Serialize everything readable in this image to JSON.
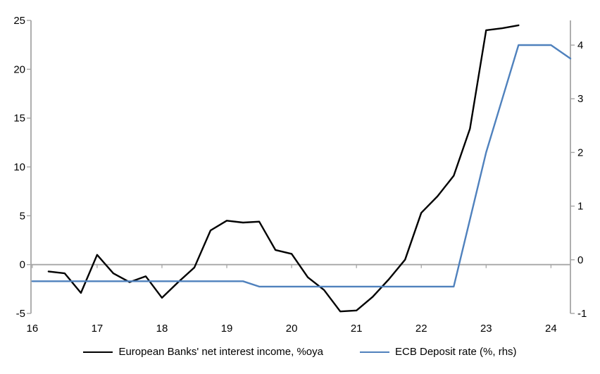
{
  "figure": {
    "background": "#ffffff",
    "axis_color": "#a6a6a6",
    "text_color": "#000000",
    "tick_font_size": 15,
    "legend_font_size": 15
  },
  "chart_data": {
    "type": "line",
    "title": "",
    "xlabel": "",
    "ylabel_left": "",
    "ylabel_right": "",
    "x_axis": {
      "tick_labels": [
        "16",
        "17",
        "18",
        "19",
        "20",
        "21",
        "22",
        "23",
        "24"
      ],
      "ticks": [
        16,
        17,
        18,
        19,
        20,
        21,
        22,
        23,
        24
      ],
      "min": 15.98,
      "max": 24.3,
      "grid": false
    },
    "left_axis": {
      "tick_labels": [
        "-5",
        "0",
        "5",
        "10",
        "15",
        "20",
        "25"
      ],
      "ticks": [
        -5,
        0,
        5,
        10,
        15,
        20,
        25
      ],
      "min": -5,
      "max": 25
    },
    "right_axis": {
      "tick_labels": [
        "-1",
        "0",
        "1",
        "2",
        "3",
        "4"
      ],
      "ticks": [
        -1,
        0,
        1,
        2,
        3,
        4
      ],
      "min": -1,
      "max": 4.46
    },
    "zero_line_value": 0,
    "series": [
      {
        "name": "European Banks' net interest income, %oya",
        "axis": "left",
        "color": "#000000",
        "width": 2.4,
        "x": [
          16.25,
          16.5,
          16.75,
          17.0,
          17.25,
          17.5,
          17.75,
          18.0,
          18.25,
          18.5,
          18.75,
          19.0,
          19.25,
          19.5,
          19.75,
          20.0,
          20.25,
          20.5,
          20.75,
          21.0,
          21.25,
          21.5,
          21.75,
          22.0,
          22.25,
          22.5,
          22.75,
          23.0,
          23.25,
          23.5
        ],
        "values": [
          -0.7,
          -0.9,
          -2.9,
          1.0,
          -0.9,
          -1.8,
          -1.2,
          -3.4,
          -1.8,
          -0.3,
          3.5,
          4.5,
          4.3,
          4.4,
          1.5,
          1.1,
          -1.3,
          -2.6,
          -4.8,
          -4.7,
          -3.3,
          -1.5,
          0.5,
          5.3,
          7.0,
          9.1,
          13.9,
          24.0,
          24.2,
          24.5
        ]
      },
      {
        "name": "ECB Deposit rate (%, rhs)",
        "axis": "right",
        "color": "#4f81bd",
        "width": 2.4,
        "x": [
          16.0,
          16.25,
          16.5,
          16.75,
          17.0,
          17.25,
          17.5,
          17.75,
          18.0,
          18.25,
          18.5,
          18.75,
          19.0,
          19.25,
          19.5,
          19.75,
          20.0,
          20.25,
          20.5,
          20.75,
          21.0,
          21.25,
          21.5,
          21.75,
          22.0,
          22.25,
          22.5,
          22.75,
          23.0,
          23.25,
          23.5,
          23.75,
          24.0,
          24.3
        ],
        "values": [
          -0.4,
          -0.4,
          -0.4,
          -0.4,
          -0.4,
          -0.4,
          -0.4,
          -0.4,
          -0.4,
          -0.4,
          -0.4,
          -0.4,
          -0.4,
          -0.4,
          -0.5,
          -0.5,
          -0.5,
          -0.5,
          -0.5,
          -0.5,
          -0.5,
          -0.5,
          -0.5,
          -0.5,
          -0.5,
          -0.5,
          -0.5,
          0.75,
          2.0,
          3.0,
          4.0,
          4.0,
          4.0,
          3.75
        ]
      }
    ],
    "legend_position": "bottom-center"
  },
  "legend": {
    "items": [
      {
        "label": "European Banks' net interest income, %oya",
        "color": "#000000"
      },
      {
        "label": "ECB Deposit rate (%, rhs)",
        "color": "#4f81bd"
      }
    ]
  }
}
